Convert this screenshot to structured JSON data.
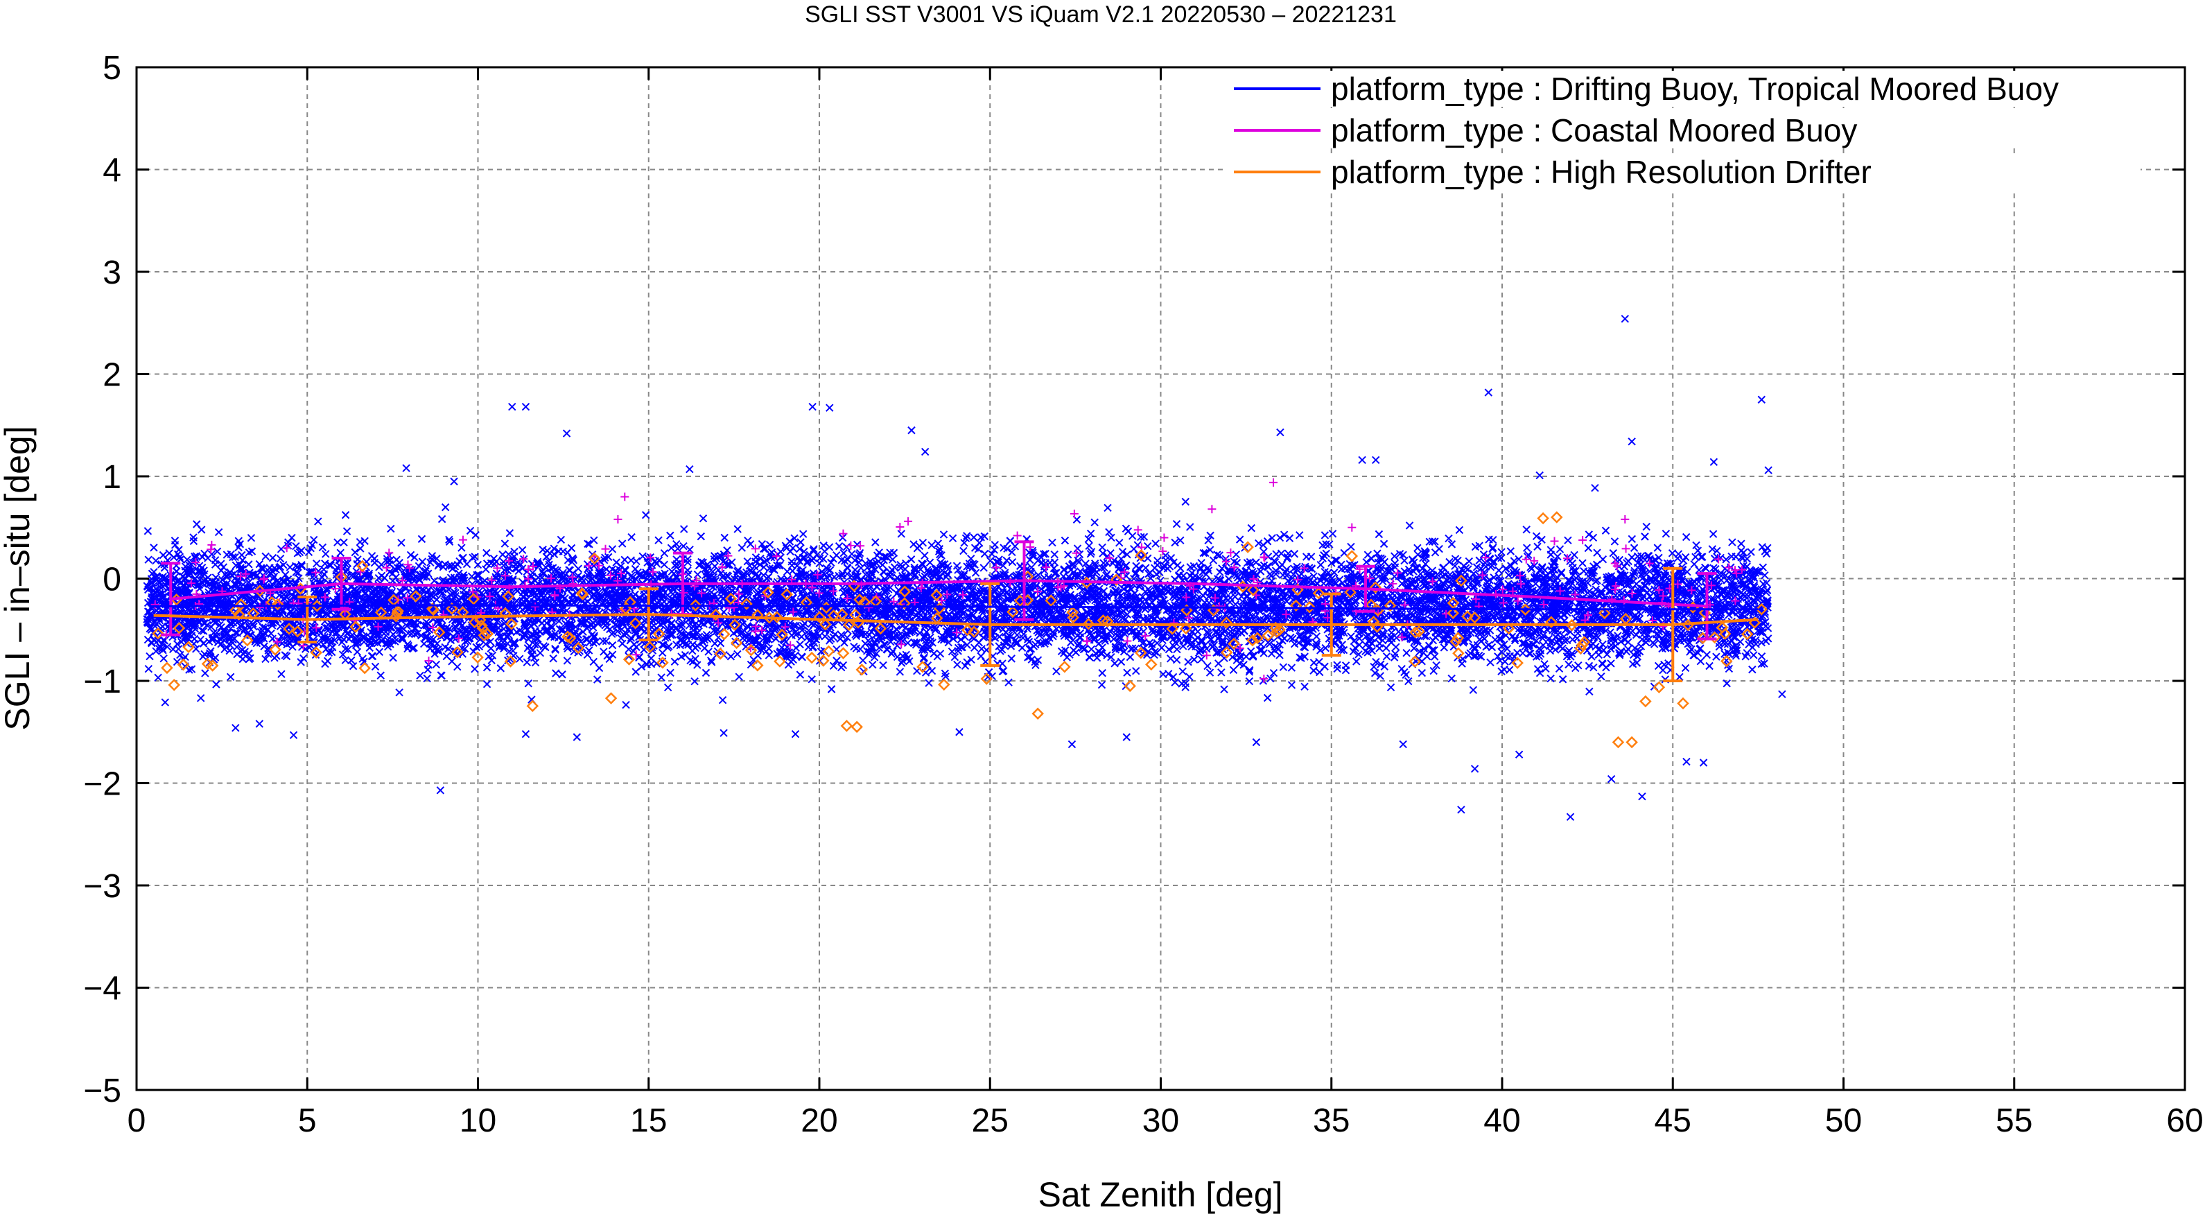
{
  "chart_data": {
    "type": "scatter",
    "title": "SGLI SST V3001 VS iQuam V2.1 20220530 – 20221231",
    "xlabel": "Sat Zenith [deg]",
    "ylabel": "SGLI – in–situ [deg]",
    "xlim": [
      0,
      60
    ],
    "ylim": [
      -5,
      5
    ],
    "x_ticks": [
      0,
      5,
      10,
      15,
      20,
      25,
      30,
      35,
      40,
      45,
      50,
      55,
      60
    ],
    "y_ticks": [
      -5,
      -4,
      -3,
      -2,
      -1,
      0,
      1,
      2,
      3,
      4,
      5
    ],
    "x_tick_labels": [
      "0",
      "5",
      "10",
      "15",
      "20",
      "25",
      "30",
      "35",
      "40",
      "45",
      "50",
      "55",
      "60"
    ],
    "y_tick_labels": [
      "−5",
      "−4",
      "−3",
      "−2",
      "−1",
      "0",
      "1",
      "2",
      "3",
      "4",
      "5"
    ],
    "grid": true,
    "legend_position": "top-right",
    "scatter_range": {
      "x_min": 0.3,
      "x_max": 48.4,
      "typical_y_min": -1.0,
      "typical_y_max": 0.5
    },
    "series": [
      {
        "name": "platform_type : Drifting Buoy, Tropical Moored Buoy",
        "color": "#0000ff",
        "marker": "x",
        "cluster": {
          "y_center": -0.27,
          "y_spread": 0.27,
          "approx_count": 9000
        },
        "outliers": [
          [
            11.0,
            1.68
          ],
          [
            11.4,
            1.68
          ],
          [
            12.6,
            1.42
          ],
          [
            19.8,
            1.68
          ],
          [
            20.3,
            1.67
          ],
          [
            22.7,
            1.45
          ],
          [
            23.1,
            1.24
          ],
          [
            33.5,
            1.43
          ],
          [
            39.6,
            1.82
          ],
          [
            43.6,
            2.54
          ],
          [
            43.8,
            1.34
          ],
          [
            47.6,
            1.75
          ],
          [
            7.9,
            1.08
          ],
          [
            9.3,
            0.95
          ],
          [
            16.2,
            1.07
          ],
          [
            35.9,
            1.16
          ],
          [
            36.3,
            1.16
          ],
          [
            41.1,
            1.01
          ],
          [
            46.2,
            1.14
          ],
          [
            47.8,
            1.06
          ],
          [
            8.9,
            -2.07
          ],
          [
            38.8,
            -2.26
          ],
          [
            42.0,
            -2.33
          ],
          [
            43.2,
            -1.96
          ],
          [
            44.1,
            -2.13
          ],
          [
            2.9,
            -1.46
          ],
          [
            3.6,
            -1.42
          ],
          [
            4.6,
            -1.53
          ],
          [
            11.4,
            -1.52
          ],
          [
            12.9,
            -1.55
          ],
          [
            17.2,
            -1.51
          ],
          [
            19.3,
            -1.52
          ],
          [
            24.1,
            -1.5
          ],
          [
            27.4,
            -1.62
          ],
          [
            29.0,
            -1.55
          ],
          [
            32.8,
            -1.6
          ],
          [
            37.1,
            -1.62
          ],
          [
            39.2,
            -1.86
          ],
          [
            40.5,
            -1.72
          ],
          [
            45.4,
            -1.79
          ],
          [
            45.9,
            -1.8
          ],
          [
            48.2,
            -1.13
          ]
        ]
      },
      {
        "name": "platform_type : Coastal Moored Buoy",
        "color": "#dd00dd",
        "marker": "+",
        "bins": [
          {
            "x": 1,
            "mean": -0.2,
            "std": 0.35
          },
          {
            "x": 6,
            "mean": -0.05,
            "std": 0.25
          },
          {
            "x": 16,
            "mean": -0.05,
            "std": 0.3
          },
          {
            "x": 26,
            "mean": -0.02,
            "std": 0.38
          },
          {
            "x": 36,
            "mean": -0.1,
            "std": 0.22
          },
          {
            "x": 46,
            "mean": -0.27,
            "std": 0.32
          }
        ],
        "mean_line": [
          [
            1,
            -0.2
          ],
          [
            6,
            -0.05
          ],
          [
            11,
            -0.08
          ],
          [
            16,
            -0.05
          ],
          [
            21,
            -0.05
          ],
          [
            26,
            -0.02
          ],
          [
            31,
            -0.05
          ],
          [
            36,
            -0.1
          ],
          [
            41,
            -0.18
          ],
          [
            46,
            -0.27
          ]
        ],
        "points": [
          [
            2.2,
            0.33
          ],
          [
            4.4,
            0.3
          ],
          [
            14.3,
            0.8
          ],
          [
            14.1,
            0.58
          ],
          [
            20.7,
            0.44
          ],
          [
            21.2,
            0.32
          ],
          [
            22.6,
            0.56
          ],
          [
            25.8,
            0.42
          ],
          [
            30.1,
            0.4
          ],
          [
            31.5,
            0.68
          ],
          [
            33.3,
            0.94
          ],
          [
            35.6,
            0.5
          ],
          [
            43.6,
            0.58
          ],
          [
            36.8,
            -0.05
          ],
          [
            28.5,
            0.2
          ]
        ]
      },
      {
        "name": "platform_type : High Resolution Drifter",
        "color": "#ff7f0e",
        "marker": "diamond",
        "bins": [
          {
            "x": 5,
            "mean": -0.4,
            "std": 0.22
          },
          {
            "x": 15,
            "mean": -0.35,
            "std": 0.25
          },
          {
            "x": 25,
            "mean": -0.45,
            "std": 0.4
          },
          {
            "x": 35,
            "mean": -0.45,
            "std": 0.3
          },
          {
            "x": 45,
            "mean": -0.45,
            "std": 0.55
          }
        ],
        "mean_line": [
          [
            0.5,
            -0.36
          ],
          [
            5,
            -0.4
          ],
          [
            10,
            -0.37
          ],
          [
            15,
            -0.35
          ],
          [
            20,
            -0.4
          ],
          [
            25,
            -0.45
          ],
          [
            30,
            -0.45
          ],
          [
            35,
            -0.45
          ],
          [
            40,
            -0.45
          ],
          [
            45,
            -0.45
          ],
          [
            47.5,
            -0.4
          ]
        ],
        "points": [
          [
            1.1,
            -1.04
          ],
          [
            20.8,
            -1.44
          ],
          [
            21.1,
            -1.45
          ],
          [
            26.4,
            -1.32
          ],
          [
            41.2,
            0.59
          ],
          [
            41.6,
            0.6
          ],
          [
            43.4,
            -1.6
          ],
          [
            43.8,
            -1.6
          ],
          [
            44.2,
            -1.2
          ],
          [
            45.3,
            -1.22
          ],
          [
            24.9,
            -0.98
          ],
          [
            13.9,
            -1.17
          ],
          [
            9.4,
            -0.72
          ],
          [
            18.0,
            -0.7
          ],
          [
            38.8,
            -0.02
          ],
          [
            47.6,
            -0.3
          ],
          [
            3.0,
            -0.35
          ],
          [
            35.6,
            0.22
          ],
          [
            29.1,
            -1.05
          ],
          [
            33.4,
            -0.52
          ]
        ]
      }
    ]
  }
}
